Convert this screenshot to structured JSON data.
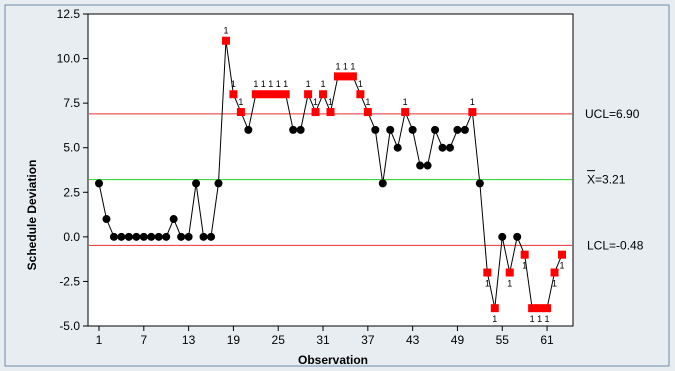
{
  "chart_data": {
    "type": "line",
    "chart_kind": "individuals control chart",
    "xlabel": "Observation",
    "ylabel": "Schedule Deviation",
    "xlim": [
      1,
      63
    ],
    "ylim": [
      -5.0,
      12.5
    ],
    "x_ticks": [
      1,
      7,
      13,
      19,
      25,
      31,
      37,
      43,
      49,
      55,
      61
    ],
    "x_tick_labels": [
      "1",
      "7",
      "13",
      "19",
      "25",
      "31",
      "37",
      "43",
      "49",
      "55",
      "61"
    ],
    "y_ticks": [
      -5.0,
      -2.5,
      0.0,
      2.5,
      5.0,
      7.5,
      10.0,
      12.5
    ],
    "y_tick_labels": [
      "-5.0",
      "-2.5",
      "0.0",
      "2.5",
      "5.0",
      "7.5",
      "10.0",
      "12.5"
    ],
    "grid": false,
    "limits": {
      "ucl": {
        "value": 6.9,
        "label": "UCL=6.90",
        "color": "#E83030"
      },
      "center": {
        "value": 3.21,
        "label": "=3.21",
        "symbol": "X",
        "color": "#20D020"
      },
      "lcl": {
        "value": -0.48,
        "label": "LCL=-0.48",
        "color": "#E83030"
      }
    },
    "values": [
      3,
      1,
      0,
      0,
      0,
      0,
      0,
      0,
      0,
      0,
      1,
      0,
      0,
      3,
      0,
      0,
      3,
      11,
      8,
      7,
      6,
      8,
      8,
      8,
      8,
      8,
      6,
      6,
      8,
      7,
      8,
      7,
      9,
      9,
      9,
      8,
      7,
      6,
      3,
      6,
      5,
      7,
      6,
      4,
      4,
      6,
      5,
      5,
      6,
      6,
      7,
      3,
      -2,
      -4,
      0,
      -2,
      0,
      -1,
      -4,
      -4,
      -4,
      -2,
      -1
    ],
    "flag_text": "1",
    "flag_marker_color": "#FF0000",
    "point_color": "#000000",
    "line_color": "#000000"
  }
}
